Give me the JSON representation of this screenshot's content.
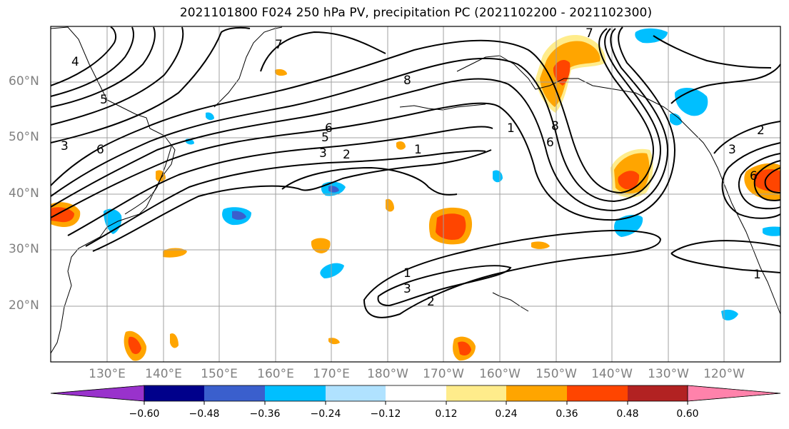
{
  "title": "2021101800 F024 250 hPa PV, precipitation PC (2021102200 - 2021102300)",
  "lat_labels": [
    "60°N",
    "50°N",
    "40°N",
    "30°N",
    "20°N"
  ],
  "lon_labels": [
    "130°E",
    "140°E",
    "150°E",
    "160°E",
    "170°E",
    "180°W",
    "170°W",
    "160°W",
    "150°W",
    "140°W",
    "130°W",
    "120°W"
  ],
  "colorbar": {
    "tick_labels": [
      "−0.60",
      "−0.48",
      "−0.36",
      "−0.24",
      "−0.12",
      "0.12",
      "0.24",
      "0.36",
      "0.48",
      "0.60"
    ],
    "colors": [
      "#9932cc",
      "#00008b",
      "#3a5fcd",
      "#00bfff",
      "#b0e2ff",
      "#ffffff",
      "#ffec8b",
      "#ffa500",
      "#ff4500",
      "#b22222",
      "#ff82ab"
    ]
  },
  "contour_labels": [
    "1",
    "2",
    "3",
    "4",
    "5",
    "6",
    "7",
    "8"
  ],
  "colors": {
    "pos_light": "#ffec8b",
    "pos_mid": "#ffa500",
    "pos_strong": "#ff4500",
    "pos_stronger": "#b22222",
    "neg_light": "#b0e2ff",
    "neg_mid": "#00bfff",
    "neg_strong": "#3a5fcd",
    "grid": "#a0a0a0"
  }
}
